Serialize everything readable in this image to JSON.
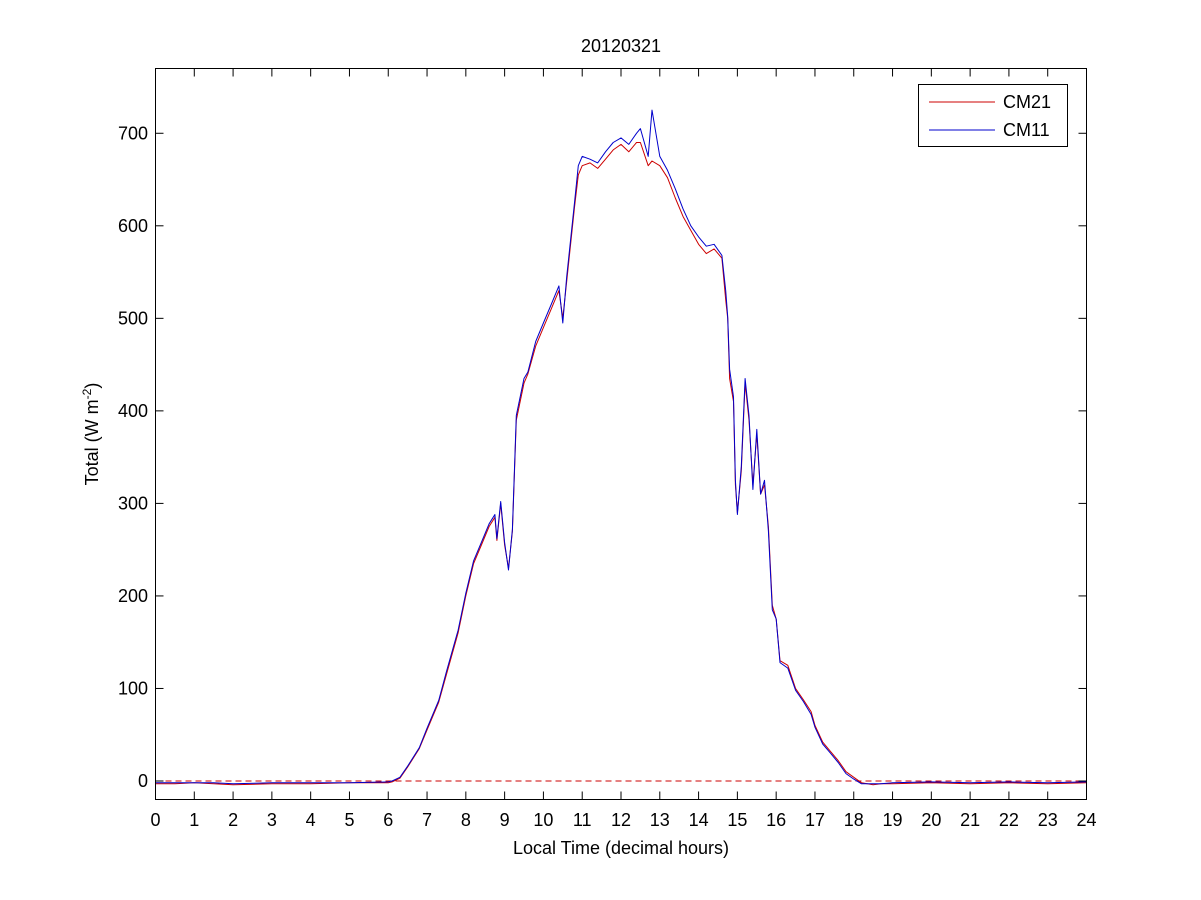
{
  "chart_data": {
    "type": "line",
    "title": "20120321",
    "xlabel": "Local Time (decimal hours)",
    "ylabel_main": "Total (W m",
    "ylabel_sup": "-2",
    "ylabel_close": ")",
    "xlim": [
      0,
      24
    ],
    "ylim": [
      -20,
      770
    ],
    "xticks": [
      0,
      1,
      2,
      3,
      4,
      5,
      6,
      7,
      8,
      9,
      10,
      11,
      12,
      13,
      14,
      15,
      16,
      17,
      18,
      19,
      20,
      21,
      22,
      23,
      24
    ],
    "yticks": [
      0,
      100,
      200,
      300,
      400,
      500,
      600,
      700
    ],
    "grid": false,
    "legend_position": "top-right",
    "reference_line": {
      "y": 0,
      "style": "dashed",
      "color": "#cc0000"
    },
    "series": [
      {
        "name": "CM21",
        "color": "#cc0000",
        "x": [
          0,
          0.5,
          1,
          1.5,
          2,
          3,
          4,
          5,
          6,
          6.1,
          6.3,
          6.5,
          6.8,
          7,
          7.3,
          7.5,
          7.8,
          8,
          8.2,
          8.4,
          8.6,
          8.75,
          8.8,
          8.9,
          9.0,
          9.1,
          9.2,
          9.3,
          9.5,
          9.6,
          9.8,
          10.0,
          10.2,
          10.4,
          10.5,
          10.6,
          10.7,
          10.8,
          10.9,
          11.0,
          11.2,
          11.4,
          11.6,
          11.8,
          12.0,
          12.2,
          12.4,
          12.5,
          12.7,
          12.8,
          13.0,
          13.2,
          13.4,
          13.6,
          13.8,
          14.0,
          14.2,
          14.4,
          14.6,
          14.7,
          14.75,
          14.8,
          14.9,
          14.95,
          15.0,
          15.1,
          15.2,
          15.3,
          15.4,
          15.5,
          15.6,
          15.7,
          15.8,
          15.9,
          16.0,
          16.1,
          16.3,
          16.5,
          16.7,
          16.9,
          17.0,
          17.2,
          17.4,
          17.6,
          17.8,
          18.0,
          18.2,
          18.5,
          18.7,
          19,
          20,
          21,
          22,
          23,
          24
        ],
        "values": [
          -3,
          -3,
          -2,
          -3,
          -4,
          -3,
          -3,
          -2,
          -2,
          -1,
          3,
          15,
          35,
          55,
          85,
          115,
          160,
          200,
          235,
          255,
          275,
          285,
          260,
          300,
          255,
          230,
          270,
          390,
          430,
          440,
          470,
          490,
          510,
          530,
          500,
          540,
          580,
          620,
          655,
          665,
          668,
          662,
          672,
          682,
          688,
          680,
          690,
          690,
          665,
          670,
          665,
          652,
          630,
          610,
          595,
          580,
          570,
          575,
          565,
          520,
          500,
          435,
          410,
          320,
          290,
          335,
          430,
          390,
          320,
          375,
          310,
          320,
          275,
          190,
          175,
          130,
          125,
          100,
          88,
          75,
          60,
          42,
          32,
          22,
          10,
          4,
          -2,
          -4,
          -3,
          -3,
          -2,
          -3,
          -2,
          -3,
          -2
        ]
      },
      {
        "name": "CM11",
        "color": "#0000cc",
        "x": [
          0,
          0.5,
          1,
          1.5,
          2,
          3,
          4,
          5,
          6,
          6.1,
          6.3,
          6.5,
          6.8,
          7,
          7.3,
          7.5,
          7.8,
          8,
          8.2,
          8.4,
          8.6,
          8.75,
          8.8,
          8.9,
          9.0,
          9.1,
          9.2,
          9.3,
          9.5,
          9.6,
          9.8,
          10.0,
          10.2,
          10.4,
          10.5,
          10.6,
          10.7,
          10.8,
          10.9,
          11.0,
          11.2,
          11.4,
          11.6,
          11.8,
          12.0,
          12.2,
          12.4,
          12.5,
          12.7,
          12.8,
          13.0,
          13.2,
          13.4,
          13.6,
          13.8,
          14.0,
          14.2,
          14.4,
          14.6,
          14.7,
          14.75,
          14.8,
          14.9,
          14.95,
          15.0,
          15.1,
          15.2,
          15.3,
          15.4,
          15.5,
          15.6,
          15.7,
          15.8,
          15.9,
          16.0,
          16.1,
          16.3,
          16.5,
          16.7,
          16.9,
          17.0,
          17.2,
          17.4,
          17.6,
          17.8,
          18.0,
          18.2,
          18.5,
          18.7,
          19,
          20,
          21,
          22,
          23,
          24
        ],
        "values": [
          -2,
          -2,
          -2,
          -2,
          -3,
          -2,
          -2,
          -2,
          -1,
          0,
          4,
          16,
          36,
          57,
          87,
          118,
          163,
          203,
          238,
          258,
          278,
          288,
          262,
          302,
          258,
          228,
          272,
          395,
          435,
          442,
          475,
          495,
          515,
          535,
          495,
          545,
          585,
          625,
          665,
          675,
          672,
          668,
          680,
          690,
          695,
          688,
          700,
          705,
          675,
          725,
          675,
          660,
          640,
          618,
          600,
          588,
          578,
          580,
          568,
          530,
          502,
          445,
          415,
          325,
          288,
          340,
          435,
          395,
          315,
          380,
          310,
          325,
          270,
          185,
          175,
          128,
          122,
          98,
          86,
          72,
          58,
          40,
          30,
          20,
          8,
          2,
          -3,
          -3,
          -3,
          -2,
          -1,
          -2,
          -1,
          -2,
          -1
        ]
      }
    ]
  }
}
